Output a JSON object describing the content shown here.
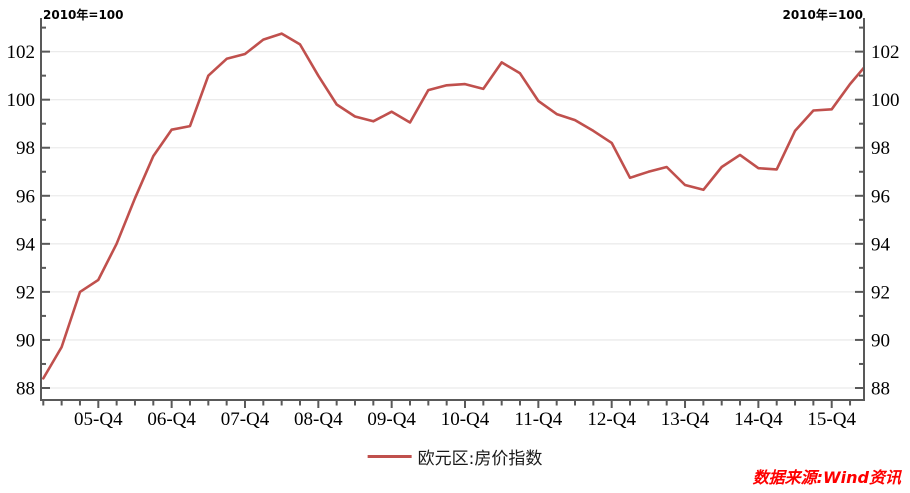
{
  "header": {
    "left_unit_label": "2010年=100",
    "right_unit_label": "2010年=100"
  },
  "legend": {
    "series_label": "欧元区:房价指数"
  },
  "source": {
    "text": "数据来源:Wind资讯"
  },
  "colors": {
    "series_line": "#c0504d",
    "axis": "#595959",
    "gridline": "#ebebeb",
    "tick_label": "#000000",
    "legend_text": "#1a1a1a",
    "source_text": "#fe0000"
  },
  "chart_data": {
    "type": "line",
    "title": "",
    "unit_note": "2010年=100",
    "grid": "horizontal-major",
    "legend_position": "bottom-center",
    "x_categories": [
      "05-Q1",
      "05-Q2",
      "05-Q3",
      "05-Q4",
      "06-Q1",
      "06-Q2",
      "06-Q3",
      "06-Q4",
      "07-Q1",
      "07-Q2",
      "07-Q3",
      "07-Q4",
      "08-Q1",
      "08-Q2",
      "08-Q3",
      "08-Q4",
      "09-Q1",
      "09-Q2",
      "09-Q3",
      "09-Q4",
      "10-Q1",
      "10-Q2",
      "10-Q3",
      "10-Q4",
      "11-Q1",
      "11-Q2",
      "11-Q3",
      "11-Q4",
      "12-Q1",
      "12-Q2",
      "12-Q3",
      "12-Q4",
      "13-Q1",
      "13-Q2",
      "13-Q3",
      "13-Q4",
      "14-Q1",
      "14-Q2",
      "14-Q3",
      "14-Q4",
      "15-Q1",
      "15-Q2",
      "15-Q3",
      "15-Q4",
      "16-Q1",
      "16-Q2"
    ],
    "x_tick_labels": [
      "05-Q4",
      "06-Q4",
      "07-Q4",
      "08-Q4",
      "09-Q4",
      "10-Q4",
      "11-Q4",
      "12-Q4",
      "13-Q4",
      "14-Q4",
      "15-Q4"
    ],
    "series": [
      {
        "name": "欧元区:房价指数",
        "color": "#c0504d",
        "values": [
          88.4,
          89.7,
          92.0,
          92.5,
          94.0,
          95.9,
          97.65,
          98.75,
          98.9,
          101.0,
          101.7,
          101.9,
          102.5,
          102.75,
          102.3,
          101.0,
          99.8,
          99.3,
          99.1,
          99.5,
          99.05,
          100.4,
          100.6,
          100.65,
          100.45,
          101.55,
          101.1,
          99.95,
          99.4,
          99.15,
          98.7,
          98.2,
          96.75,
          97.0,
          97.2,
          96.45,
          96.25,
          97.2,
          97.7,
          97.15,
          97.1,
          98.7,
          99.55,
          99.6,
          100.65,
          101.55
        ]
      }
    ],
    "y_ticks_major": [
      88,
      90,
      92,
      94,
      96,
      98,
      100,
      102
    ],
    "y_ticks_minor": [
      89,
      91,
      93,
      95,
      97,
      99,
      101,
      103
    ],
    "ylim": [
      87.5,
      103.4
    ]
  }
}
